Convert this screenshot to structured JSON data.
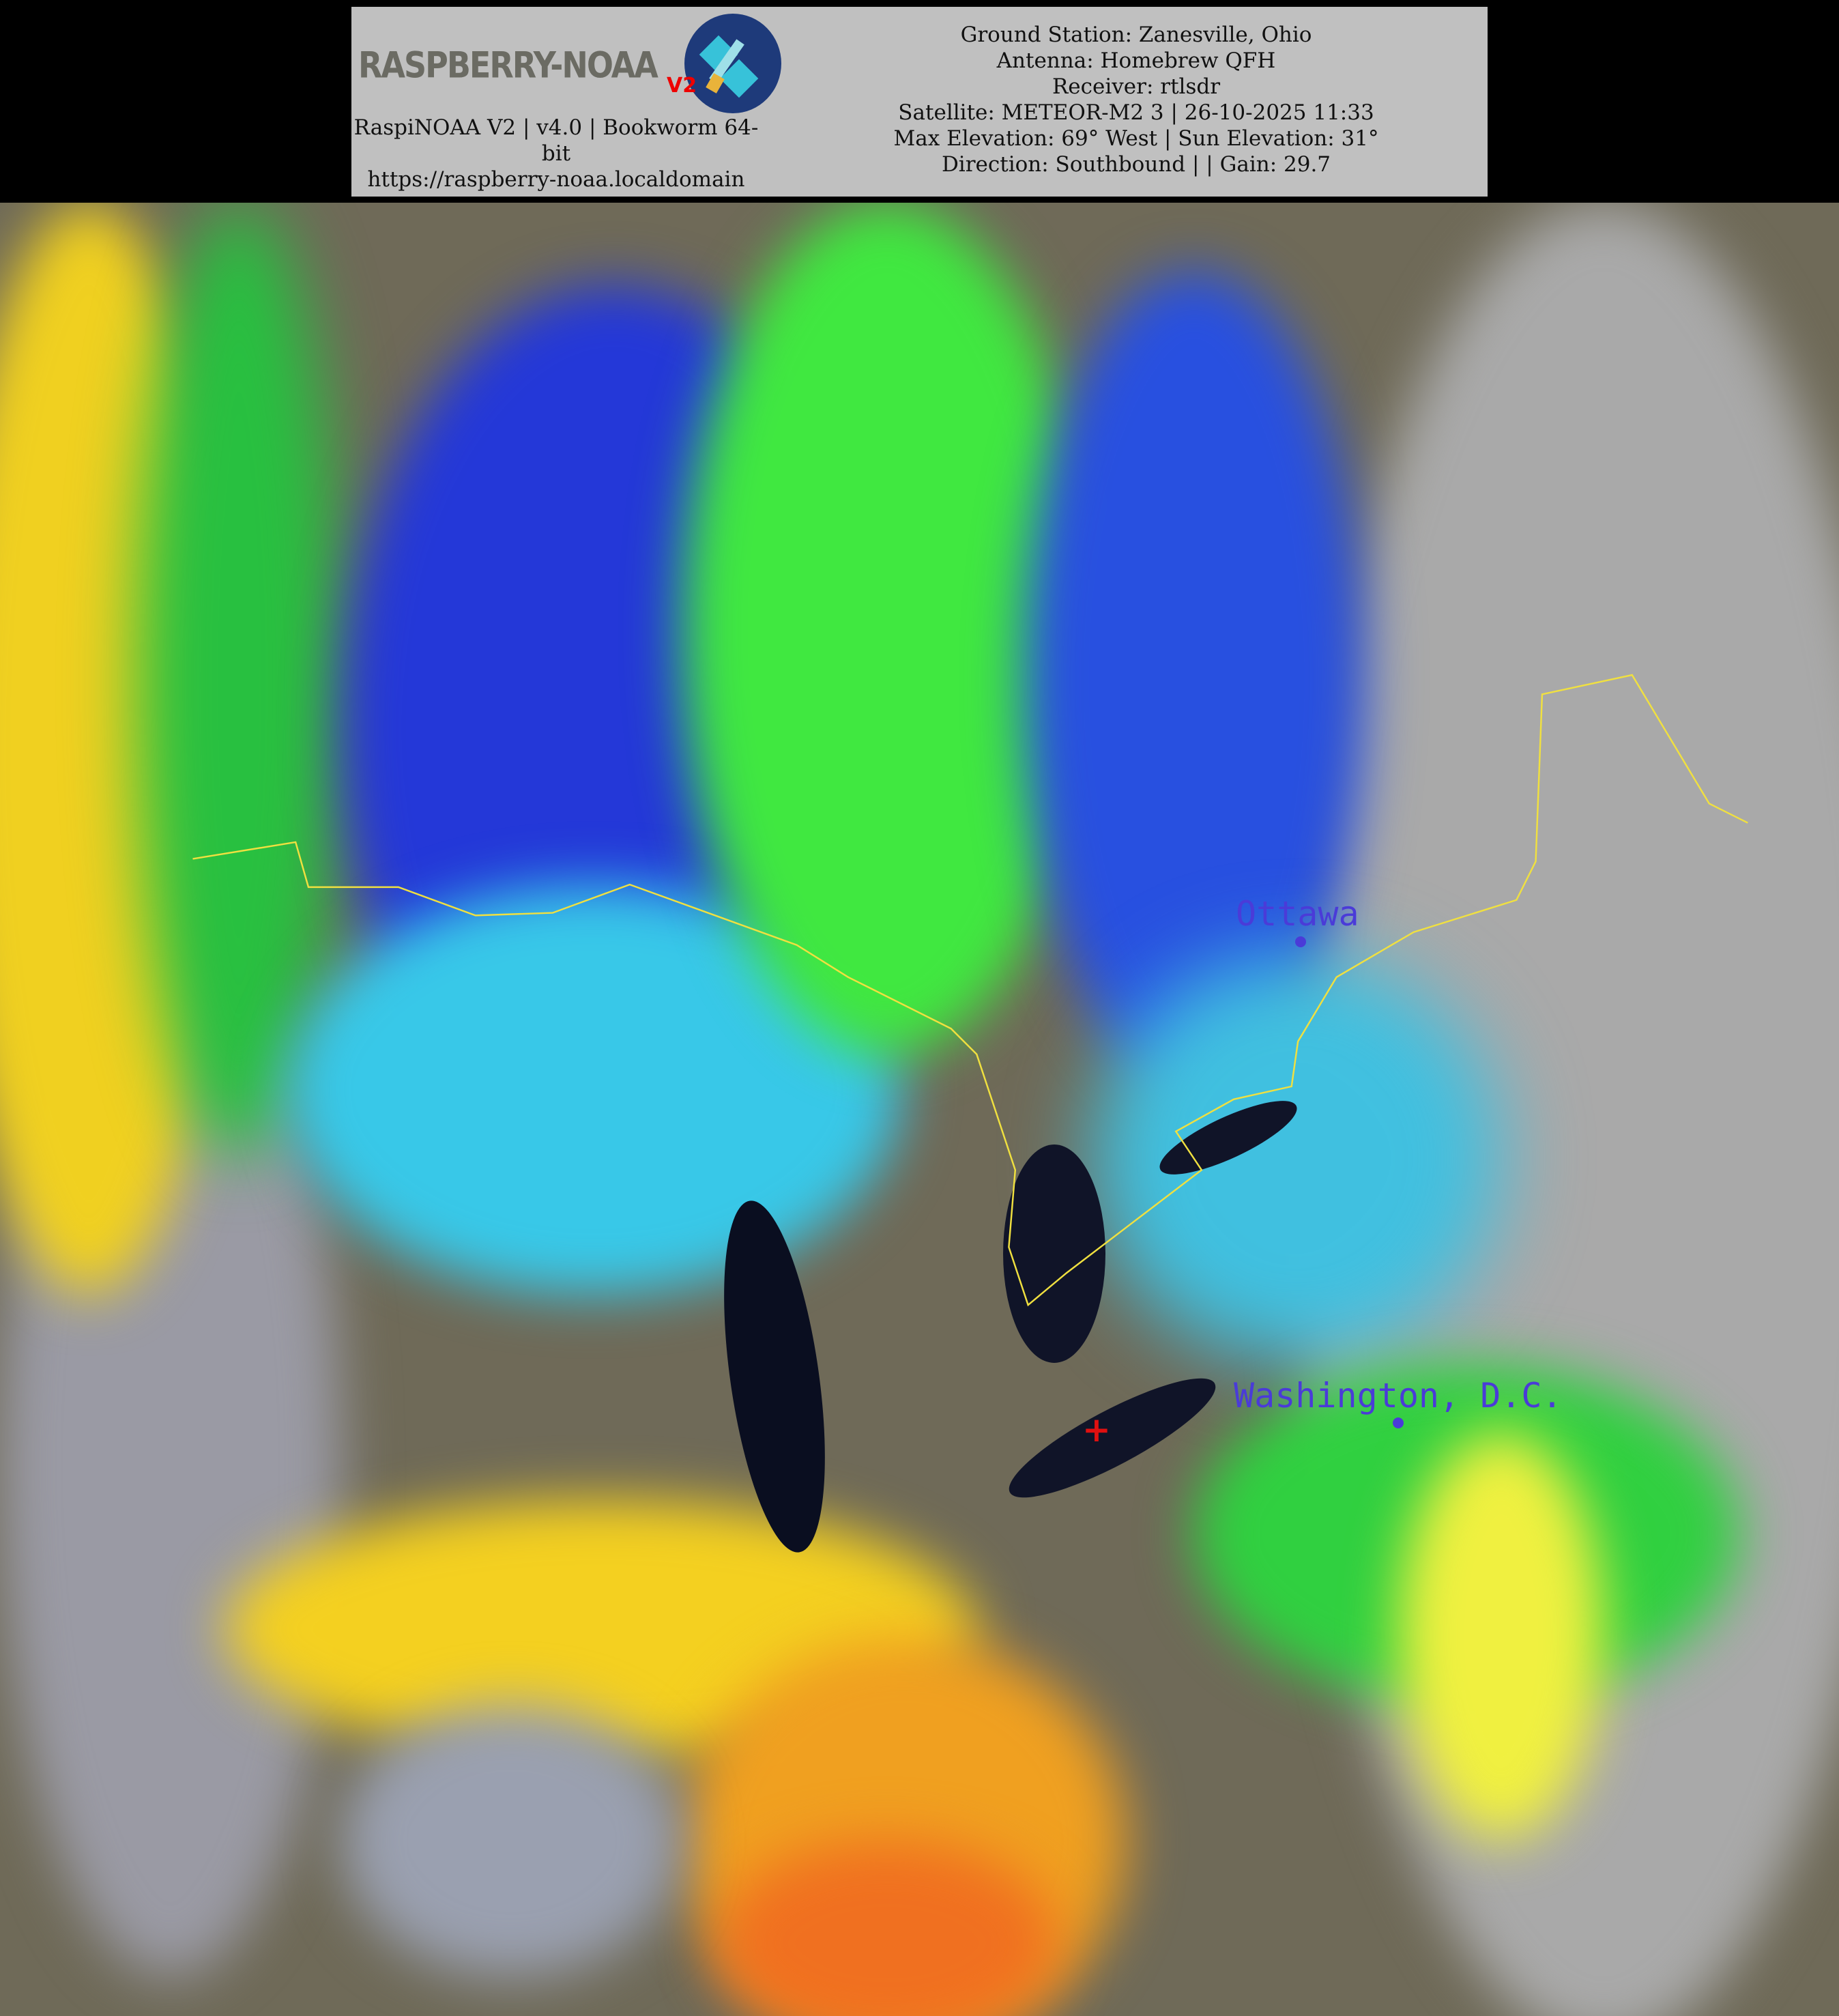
{
  "header": {
    "logo": {
      "text": "RASPBERRY-NOAA",
      "badge": "V2"
    },
    "left_lines": [
      "RaspiNOAA V2 | v4.0 | Bookworm 64-",
      "bit",
      "https://raspberry-noaa.localdomain"
    ],
    "right_lines": [
      "Ground Station: Zanesville, Ohio",
      "Antenna: Homebrew QFH",
      "Receiver: rtlsdr",
      "Satellite: METEOR-M2 3 | 26-10-2025 11:33",
      "Max Elevation: 69° West | Sun Elevation: 31°",
      "Direction: Southbound | | Gain: 29.7"
    ]
  },
  "map": {
    "cities": [
      "Ottawa",
      "Washington, D.C."
    ],
    "ground_station_marker": "red-plus-icon",
    "colors": {
      "border": "#f0e040",
      "city": "#4a3bd8",
      "marker": "#e01010"
    }
  }
}
